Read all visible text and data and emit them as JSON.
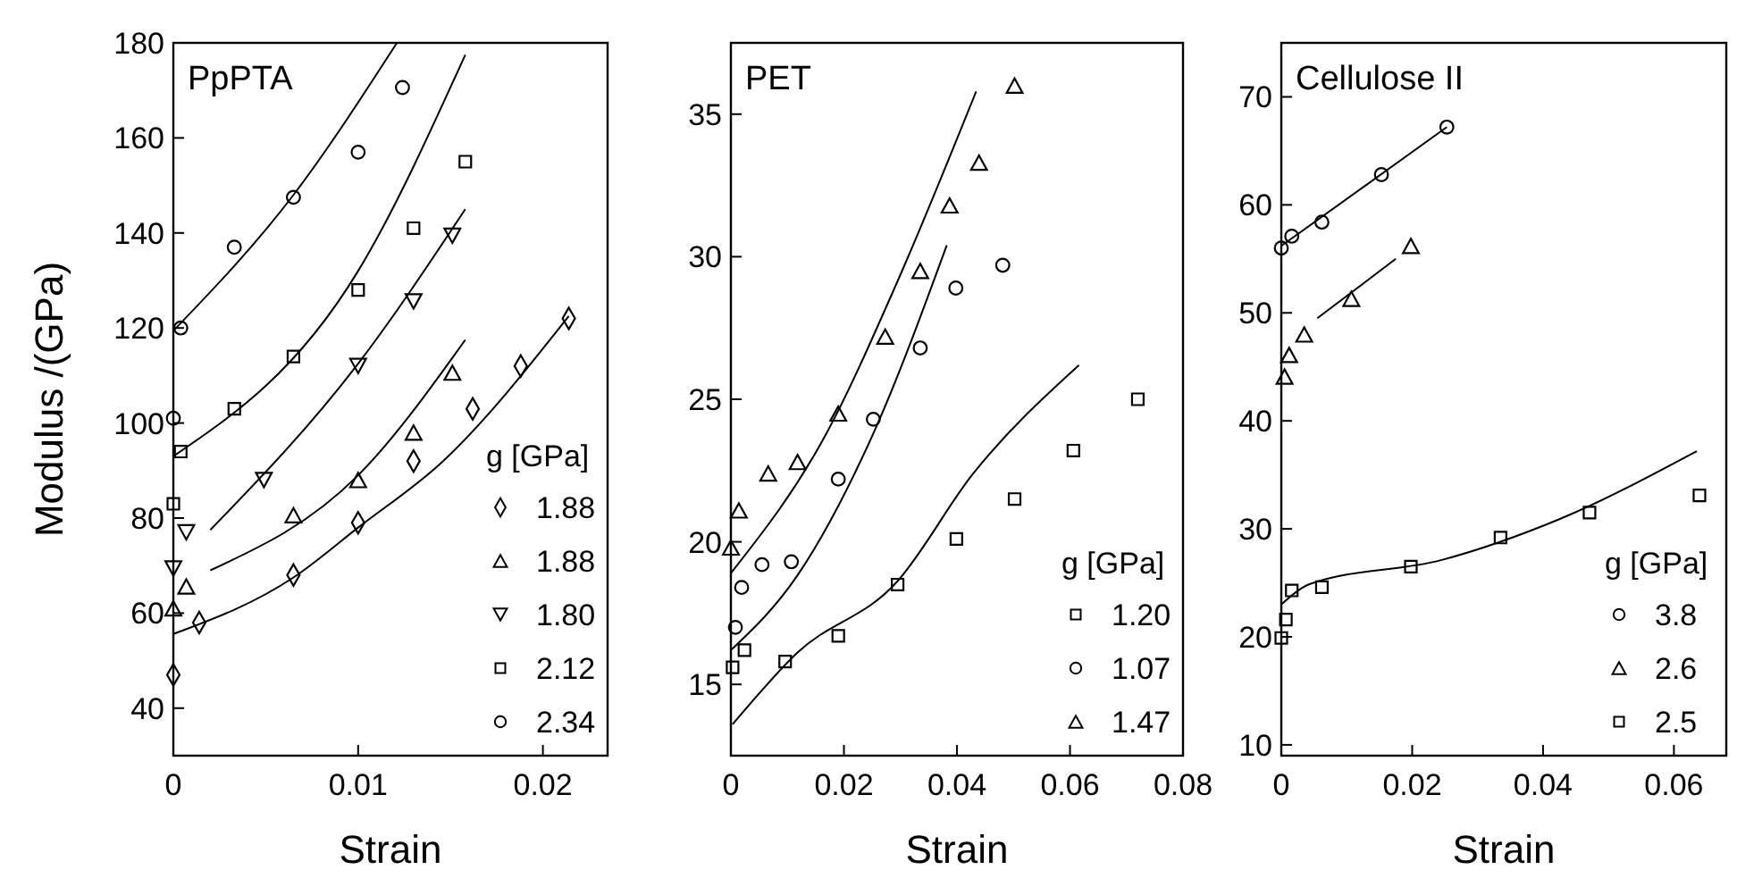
{
  "chart_data": [
    {
      "type": "scatter",
      "title": "PpPTA",
      "xlabel": "Strain",
      "ylabel": "Modulus /(GPa)",
      "legend_title": "g [GPa]",
      "legend": "bottom right",
      "xlim": [
        0,
        0.0235
      ],
      "ylim": [
        30,
        180
      ],
      "xticks": [
        0,
        0.01,
        0.02
      ],
      "yticks": [
        40,
        60,
        80,
        100,
        120,
        140,
        160,
        180
      ],
      "series": [
        {
          "name": "1.88",
          "color": "#000000",
          "marker": "diamond",
          "x": [
            0,
            0.0014,
            0.0065,
            0.01,
            0.013,
            0.0162,
            0.0188,
            0.0214
          ],
          "values": [
            47,
            58,
            68,
            79,
            92,
            103,
            112,
            122
          ]
        },
        {
          "name": "1.88",
          "color": "#000000",
          "marker": "triangle",
          "x": [
            0,
            0.0007,
            0.0065,
            0.01,
            0.013,
            0.0151
          ],
          "values": [
            61,
            65.6,
            80.6,
            88,
            98,
            110.6
          ]
        },
        {
          "name": "1.80",
          "color": "#000000",
          "marker": "triangle-down",
          "x": [
            0,
            0.0007,
            0.0049,
            0.01,
            0.013,
            0.0151
          ],
          "values": [
            69.4,
            77,
            88,
            112,
            125.6,
            139.4
          ]
        },
        {
          "name": "2.12",
          "color": "#000000",
          "marker": "square",
          "x": [
            0,
            0.0004,
            0.0033,
            0.0065,
            0.01,
            0.013,
            0.0158
          ],
          "values": [
            83,
            94,
            103,
            114,
            128,
            141,
            155
          ]
        },
        {
          "name": "2.34",
          "color": "#000000",
          "marker": "circle",
          "x": [
            0,
            0.0004,
            0.0033,
            0.0065,
            0.01,
            0.0124
          ],
          "values": [
            101,
            120,
            137,
            147.5,
            157,
            170.6
          ]
        },
        {
          "type": "line",
          "color": "#000000",
          "x": [
            0,
            0.0065,
            0.01,
            0.0146,
            0.0214
          ],
          "values": [
            55.6,
            67.5,
            78,
            92,
            122.5
          ]
        },
        {
          "type": "line",
          "color": "#000000",
          "x": [
            0.002,
            0.01,
            0.0158
          ],
          "values": [
            69,
            89,
            117.5
          ]
        },
        {
          "type": "line",
          "color": "#000000",
          "x": [
            0.002,
            0.01,
            0.0158
          ],
          "values": [
            77.5,
            112.5,
            145
          ]
        },
        {
          "type": "line",
          "color": "#000000",
          "x": [
            0,
            0.01,
            0.0158
          ],
          "values": [
            93,
            132,
            177.5
          ]
        },
        {
          "type": "line",
          "color": "#000000",
          "x": [
            0,
            0.0065,
            0.0121
          ],
          "values": [
            119.4,
            148,
            180
          ]
        }
      ]
    },
    {
      "type": "scatter",
      "title": "PET",
      "xlabel": "Strain",
      "legend_title": "g [GPa]",
      "legend": "bottom right",
      "xlim": [
        0,
        0.08
      ],
      "ylim": [
        12.5,
        37.5
      ],
      "xticks": [
        0,
        0.02,
        0.04,
        0.06,
        0.08
      ],
      "yticks": [
        15,
        20,
        25,
        30,
        35
      ],
      "series": [
        {
          "name": "1.20",
          "color": "#000000",
          "marker": "square",
          "x": [
            0.0003,
            0.0024,
            0.0096,
            0.019,
            0.0295,
            0.0399,
            0.0502,
            0.0606,
            0.072
          ],
          "values": [
            15.6,
            16.2,
            15.8,
            16.7,
            18.5,
            20.1,
            21.5,
            23.2,
            25
          ]
        },
        {
          "name": "1.07",
          "color": "#000000",
          "marker": "circle",
          "x": [
            0.0008,
            0.0019,
            0.0055,
            0.0107,
            0.019,
            0.0252,
            0.0335,
            0.0398,
            0.0481
          ],
          "values": [
            17,
            18.4,
            19.2,
            19.3,
            22.2,
            24.3,
            26.8,
            28.9,
            29.7
          ]
        },
        {
          "name": "1.47",
          "color": "#000000",
          "marker": "triangle",
          "x": [
            0,
            0.0014,
            0.0066,
            0.0118,
            0.019,
            0.0273,
            0.0335,
            0.0387,
            0.0439,
            0.0502
          ],
          "values": [
            19.8,
            21.1,
            22.4,
            22.8,
            24.5,
            27.2,
            29.5,
            31.8,
            33.3,
            36
          ]
        },
        {
          "type": "line",
          "color": "#000000",
          "x": [
            0.0003,
            0.0117,
            0.0294,
            0.0429,
            0.0616
          ],
          "values": [
            13.6,
            16.1,
            18.6,
            22.4,
            26.2
          ]
        },
        {
          "type": "line",
          "color": "#000000",
          "x": [
            0,
            0.0117,
            0.0252,
            0.0382
          ],
          "values": [
            16.2,
            18.8,
            23.8,
            30.4
          ]
        },
        {
          "type": "line",
          "color": "#000000",
          "x": [
            0,
            0.0169,
            0.0294,
            0.0434
          ],
          "values": [
            18.9,
            23.8,
            29.1,
            35.8
          ]
        }
      ]
    },
    {
      "type": "scatter",
      "title": "Cellulose II",
      "xlabel": "Strain",
      "legend_title": "g [GPa]",
      "legend": "bottom right",
      "xlim": [
        0,
        0.068
      ],
      "ylim": [
        9,
        75
      ],
      "xticks": [
        0,
        0.02,
        0.04,
        0.06
      ],
      "yticks": [
        10,
        20,
        30,
        40,
        50,
        60,
        70
      ],
      "series": [
        {
          "name": "3.8",
          "color": "#000000",
          "marker": "circle",
          "x": [
            0,
            0.0016,
            0.0062,
            0.0153,
            0.0253
          ],
          "values": [
            56,
            57.1,
            58.4,
            62.8,
            67.2
          ]
        },
        {
          "name": "2.6",
          "color": "#000000",
          "marker": "triangle",
          "x": [
            0.0005,
            0.0012,
            0.0035,
            0.0107,
            0.0198
          ],
          "values": [
            44.1,
            46.1,
            48,
            51.3,
            56.2
          ]
        },
        {
          "name": "2.5",
          "color": "#000000",
          "marker": "square",
          "x": [
            0,
            0.0007,
            0.0016,
            0.0062,
            0.0198,
            0.0335,
            0.0471,
            0.0639
          ],
          "values": [
            19.9,
            21.6,
            24.3,
            24.6,
            26.5,
            29.2,
            31.5,
            33.1
          ]
        },
        {
          "type": "line",
          "color": "#000000",
          "x": [
            0,
            0.0253
          ],
          "values": [
            56.2,
            67.2
          ]
        },
        {
          "type": "line",
          "color": "#000000",
          "x": [
            0.0055,
            0.0175
          ],
          "values": [
            49.5,
            55
          ]
        },
        {
          "type": "line",
          "color": "#000000",
          "x": [
            0,
            0.0044,
            0.0244,
            0.0425,
            0.0635
          ],
          "values": [
            23,
            24.9,
            27.1,
            30.9,
            37.2
          ]
        }
      ]
    }
  ]
}
